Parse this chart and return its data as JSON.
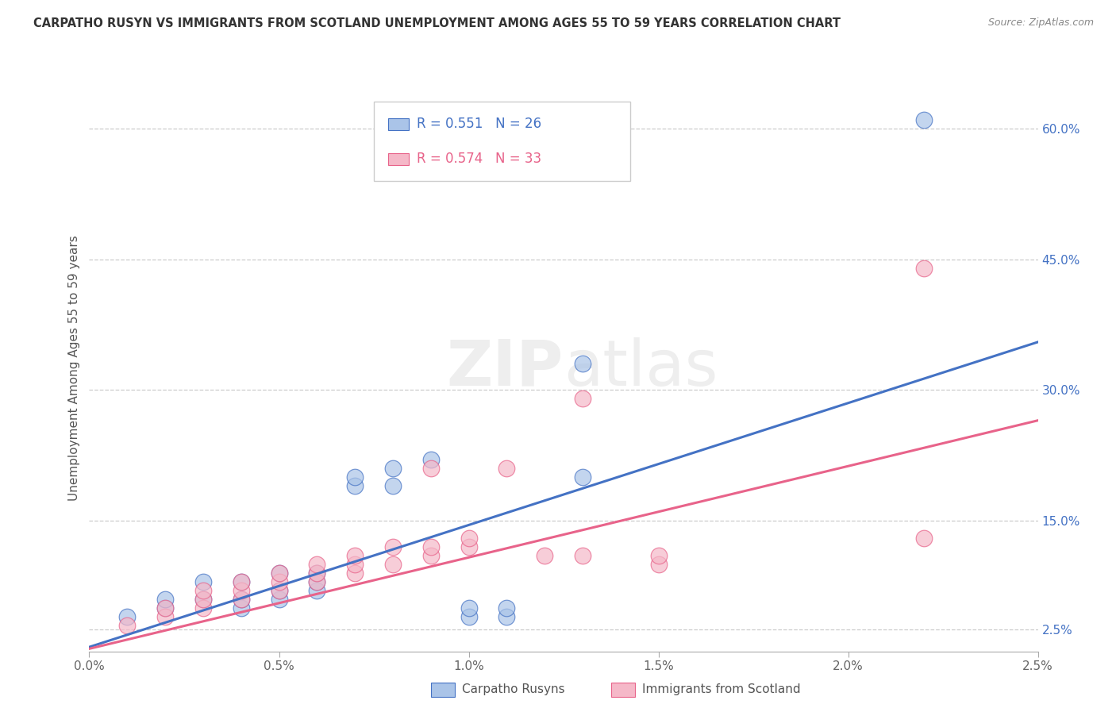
{
  "title": "CARPATHO RUSYN VS IMMIGRANTS FROM SCOTLAND UNEMPLOYMENT AMONG AGES 55 TO 59 YEARS CORRELATION CHART",
  "source": "Source: ZipAtlas.com",
  "ylabel": "Unemployment Among Ages 55 to 59 years",
  "legend_blue_r": "0.551",
  "legend_blue_n": "26",
  "legend_pink_r": "0.574",
  "legend_pink_n": "33",
  "legend_label_blue": "Carpatho Rusyns",
  "legend_label_pink": "Immigrants from Scotland",
  "blue_color": "#aac4e8",
  "pink_color": "#f5b8c8",
  "blue_line_color": "#4472c4",
  "pink_line_color": "#e8638a",
  "background_color": "#FFFFFF",
  "watermark": "ZIPatlas",
  "blue_scatter_x": [
    0.001,
    0.002,
    0.002,
    0.003,
    0.003,
    0.004,
    0.004,
    0.004,
    0.005,
    0.005,
    0.005,
    0.006,
    0.006,
    0.006,
    0.007,
    0.007,
    0.008,
    0.008,
    0.009,
    0.01,
    0.01,
    0.011,
    0.011,
    0.013,
    0.013,
    0.022
  ],
  "blue_scatter_y": [
    0.04,
    0.05,
    0.06,
    0.06,
    0.08,
    0.05,
    0.06,
    0.08,
    0.06,
    0.07,
    0.09,
    0.07,
    0.08,
    0.09,
    0.19,
    0.2,
    0.19,
    0.21,
    0.22,
    0.04,
    0.05,
    0.04,
    0.05,
    0.2,
    0.33,
    0.61
  ],
  "pink_scatter_x": [
    0.001,
    0.002,
    0.002,
    0.003,
    0.003,
    0.003,
    0.004,
    0.004,
    0.004,
    0.005,
    0.005,
    0.005,
    0.006,
    0.006,
    0.006,
    0.007,
    0.007,
    0.007,
    0.008,
    0.008,
    0.009,
    0.009,
    0.009,
    0.01,
    0.01,
    0.011,
    0.012,
    0.013,
    0.013,
    0.015,
    0.015,
    0.022,
    0.022
  ],
  "pink_scatter_y": [
    0.03,
    0.04,
    0.05,
    0.05,
    0.06,
    0.07,
    0.06,
    0.07,
    0.08,
    0.07,
    0.08,
    0.09,
    0.08,
    0.09,
    0.1,
    0.09,
    0.1,
    0.11,
    0.1,
    0.12,
    0.11,
    0.12,
    0.21,
    0.12,
    0.13,
    0.21,
    0.11,
    0.11,
    0.29,
    0.1,
    0.11,
    0.44,
    0.13
  ],
  "xlim": [
    0.0,
    0.025
  ],
  "ylim": [
    0.0,
    0.65
  ],
  "x_tick_vals": [
    0.0,
    0.005,
    0.01,
    0.015,
    0.02,
    0.025
  ],
  "x_tick_labels": [
    "0.0%",
    "0.5%",
    "1.0%",
    "1.5%",
    "2.0%",
    "2.5%"
  ],
  "right_y_tick_vals": [
    0.025,
    0.15,
    0.3,
    0.45,
    0.6
  ],
  "right_y_tick_labels": [
    "2.5%",
    "15.0%",
    "30.0%",
    "45.0%",
    "60.0%"
  ],
  "blue_line_x0": 0.0,
  "blue_line_x1": 0.025,
  "blue_line_y0": 0.005,
  "blue_line_y1": 0.355,
  "pink_line_x0": 0.0,
  "pink_line_x1": 0.025,
  "pink_line_y0": 0.003,
  "pink_line_y1": 0.265
}
